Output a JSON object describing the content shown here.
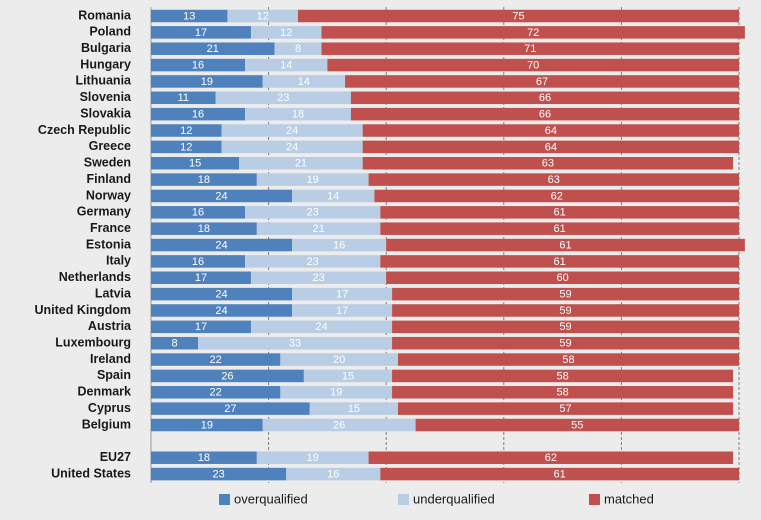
{
  "chart_data": {
    "type": "stacked_barh",
    "categories": [
      "Romania",
      "Poland",
      "Bulgaria",
      "Hungary",
      "Lithuania",
      "Slovenia",
      "Slovakia",
      "Czech Republic",
      "Greece",
      "Sweden",
      "Finland",
      "Norway",
      "Germany",
      "France",
      "Estonia",
      "Italy",
      "Netherlands",
      "Latvia",
      "United Kingdom",
      "Austria",
      "Luxembourg",
      "Ireland",
      "Spain",
      "Denmark",
      "Cyprus",
      "Belgium",
      null,
      "EU27",
      "United States"
    ],
    "series": [
      {
        "name": "overqualified",
        "color": "#4f81bd",
        "values": [
          13,
          17,
          21,
          16,
          19,
          11,
          16,
          12,
          12,
          15,
          18,
          24,
          16,
          18,
          24,
          16,
          17,
          24,
          24,
          17,
          8,
          22,
          26,
          22,
          27,
          19,
          null,
          18,
          23
        ]
      },
      {
        "name": "underqualified",
        "color": "#b9cde5",
        "values": [
          12,
          12,
          8,
          14,
          14,
          23,
          18,
          24,
          24,
          21,
          19,
          14,
          23,
          21,
          16,
          23,
          23,
          17,
          17,
          24,
          33,
          20,
          15,
          19,
          15,
          26,
          null,
          19,
          16
        ]
      },
      {
        "name": "matched",
        "color": "#c0504d",
        "values": [
          75,
          72,
          71,
          70,
          67,
          66,
          66,
          64,
          64,
          63,
          63,
          62,
          61,
          61,
          61,
          61,
          60,
          59,
          59,
          59,
          59,
          58,
          58,
          58,
          57,
          55,
          null,
          62,
          61
        ]
      }
    ],
    "xlim": [
      0,
      100
    ],
    "xgrid": [
      20,
      40,
      60,
      80,
      100
    ],
    "grid": true,
    "legend": "bottom"
  }
}
